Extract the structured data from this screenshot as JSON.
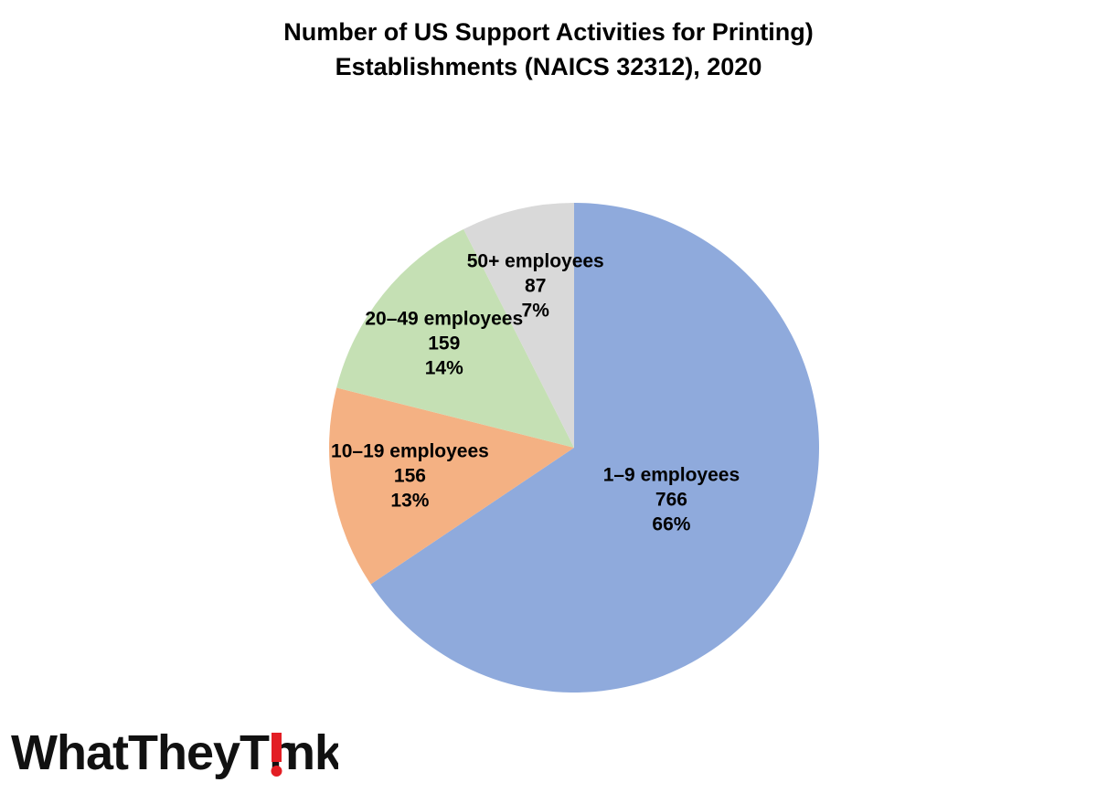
{
  "chart_data": {
    "type": "pie",
    "title": [
      "Number of US Support Activities for Printing)",
      "Establishments (NAICS 32312), 2020"
    ],
    "slices": [
      {
        "label": "1–9 employees",
        "value": 766,
        "percent_label": "66%",
        "color": "#8faadc"
      },
      {
        "label": "10–19 employees",
        "value": 156,
        "percent_label": "13%",
        "color": "#f4b183"
      },
      {
        "label": "20–49 employees",
        "value": 159,
        "percent_label": "14%",
        "color": "#c5e0b4"
      },
      {
        "label": "50+ employees",
        "value": 87,
        "percent_label": "7%",
        "color": "#d9d9d9"
      }
    ],
    "start": "12 o'clock",
    "direction": "clockwise",
    "data_labels": "inside",
    "legend": "none"
  },
  "logo": {
    "text": "WhatTheyThink",
    "accent_color": "#e31e24"
  }
}
